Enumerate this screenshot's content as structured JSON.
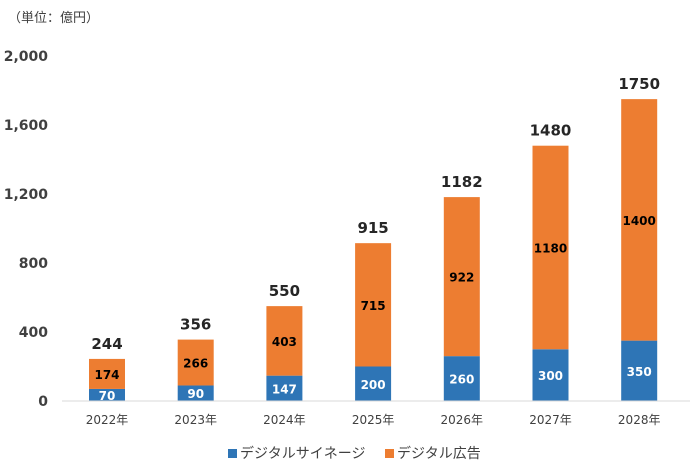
{
  "chart_data": {
    "type": "bar",
    "stacked": true,
    "unit_label": "（単位：億円）",
    "categories": [
      "2022年",
      "2023年",
      "2024年",
      "2025年",
      "2026年",
      "2027年",
      "2028年"
    ],
    "series": [
      {
        "name": "デジタルサイネージ",
        "color": "#2e75b6",
        "values": [
          70,
          90,
          147,
          200,
          260,
          300,
          350
        ],
        "label_color": "#ffffff"
      },
      {
        "name": "デジタル広告",
        "color": "#ed7d31",
        "values": [
          174,
          266,
          403,
          715,
          922,
          1180,
          1400
        ],
        "label_color": "#000000"
      }
    ],
    "totals": [
      244,
      356,
      550,
      915,
      1182,
      1480,
      1750
    ],
    "ylim": [
      0,
      2000
    ],
    "yticks": [
      "0",
      "400",
      "800",
      "1,200",
      "1,600",
      "2,000"
    ],
    "ytick_values": [
      0,
      400,
      800,
      1200,
      1600,
      2000
    ],
    "grid": false,
    "legend": "bottom"
  }
}
